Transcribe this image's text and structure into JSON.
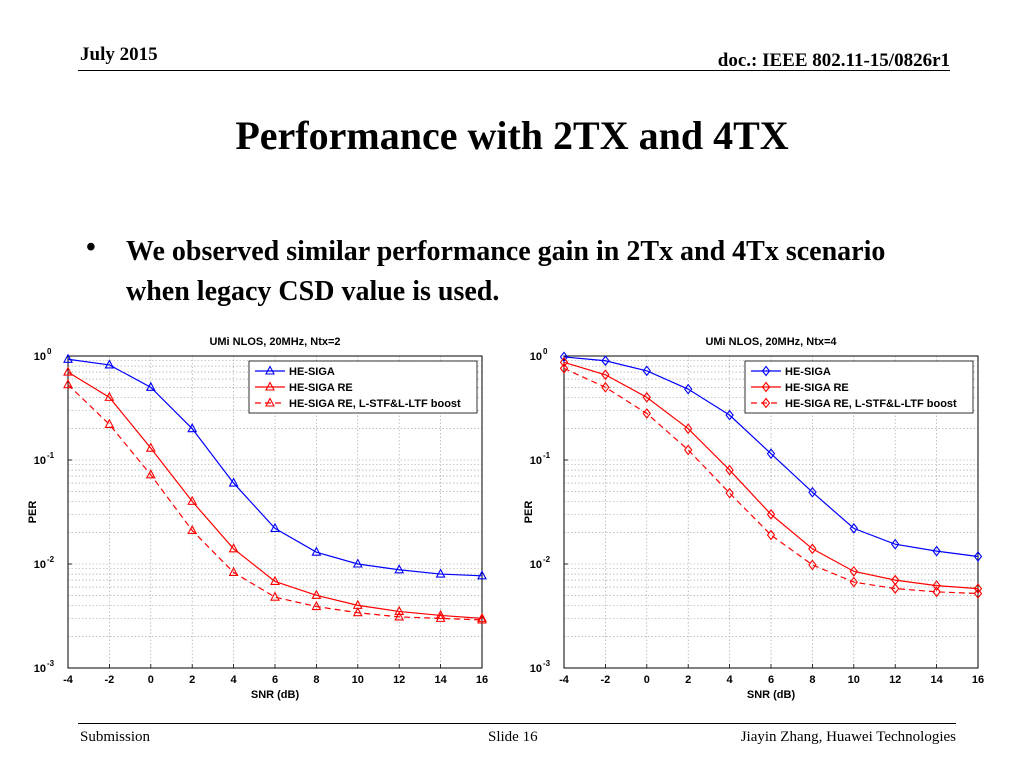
{
  "header": {
    "date": "July 2015",
    "doc_id": "doc.: IEEE 802.11-15/0826r1"
  },
  "title": "Performance with 2TX and 4TX",
  "bullet": {
    "symbol": "•",
    "text": "We observed similar performance gain in 2Tx and 4Tx scenario when legacy CSD value is used."
  },
  "footer": {
    "left": "Submission",
    "center": "Slide 16",
    "right": "Jiayin Zhang, Huawei Technologies"
  },
  "chart_data": [
    {
      "type": "line",
      "title": "UMi NLOS, 20MHz, Ntx=2",
      "xlabel": "SNR (dB)",
      "ylabel": "PER",
      "yscale": "log",
      "xlim": [
        -4,
        16
      ],
      "ylim": [
        0.001,
        1
      ],
      "xticks": [
        "-4",
        "-2",
        "0",
        "2",
        "4",
        "6",
        "8",
        "10",
        "12",
        "14",
        "16"
      ],
      "yticks": [
        {
          "base": "10",
          "exp": "0"
        },
        {
          "base": "10",
          "exp": "-1"
        },
        {
          "base": "10",
          "exp": "-2"
        },
        {
          "base": "10",
          "exp": "-3"
        }
      ],
      "grid": true,
      "legend_position": "top-right",
      "marker": "triangle",
      "x": [
        -4,
        -2,
        0,
        2,
        4,
        6,
        8,
        10,
        12,
        14,
        16
      ],
      "series": [
        {
          "name": "HE-SIGA",
          "color": "#0000ff",
          "dash": false,
          "values": [
            0.93,
            0.82,
            0.5,
            0.2,
            0.06,
            0.022,
            0.013,
            0.01,
            0.0088,
            0.008,
            0.0077
          ]
        },
        {
          "name": "HE-SIGA RE",
          "color": "#ff0000",
          "dash": false,
          "values": [
            0.7,
            0.4,
            0.13,
            0.04,
            0.014,
            0.0068,
            0.005,
            0.004,
            0.0035,
            0.0032,
            0.003
          ]
        },
        {
          "name": "HE-SIGA RE, L-STF&L-LTF boost",
          "color": "#ff0000",
          "dash": true,
          "values": [
            0.53,
            0.22,
            0.072,
            0.021,
            0.0083,
            0.0048,
            0.0039,
            0.0034,
            0.0031,
            0.003,
            0.0029
          ]
        }
      ]
    },
    {
      "type": "line",
      "title": "UMi NLOS, 20MHz, Ntx=4",
      "xlabel": "SNR (dB)",
      "ylabel": "PER",
      "yscale": "log",
      "xlim": [
        -4,
        16
      ],
      "ylim": [
        0.001,
        1
      ],
      "xticks": [
        "-4",
        "-2",
        "0",
        "2",
        "4",
        "6",
        "8",
        "10",
        "12",
        "14",
        "16"
      ],
      "yticks": [
        {
          "base": "10",
          "exp": "0"
        },
        {
          "base": "10",
          "exp": "-1"
        },
        {
          "base": "10",
          "exp": "-2"
        },
        {
          "base": "10",
          "exp": "-3"
        }
      ],
      "grid": true,
      "legend_position": "top-right",
      "marker": "diamond",
      "x": [
        -4,
        -2,
        0,
        2,
        4,
        6,
        8,
        10,
        12,
        14,
        16
      ],
      "series": [
        {
          "name": "HE-SIGA",
          "color": "#0000ff",
          "dash": false,
          "values": [
            0.98,
            0.9,
            0.72,
            0.48,
            0.27,
            0.115,
            0.049,
            0.022,
            0.0155,
            0.0133,
            0.0118
          ]
        },
        {
          "name": "HE-SIGA RE",
          "color": "#ff0000",
          "dash": false,
          "values": [
            0.87,
            0.66,
            0.4,
            0.2,
            0.08,
            0.03,
            0.014,
            0.0085,
            0.007,
            0.0062,
            0.0058
          ]
        },
        {
          "name": "HE-SIGA RE, L-STF&L-LTF boost",
          "color": "#ff0000",
          "dash": true,
          "values": [
            0.76,
            0.5,
            0.28,
            0.125,
            0.048,
            0.019,
            0.0098,
            0.0067,
            0.0058,
            0.0054,
            0.0052
          ]
        }
      ]
    }
  ]
}
